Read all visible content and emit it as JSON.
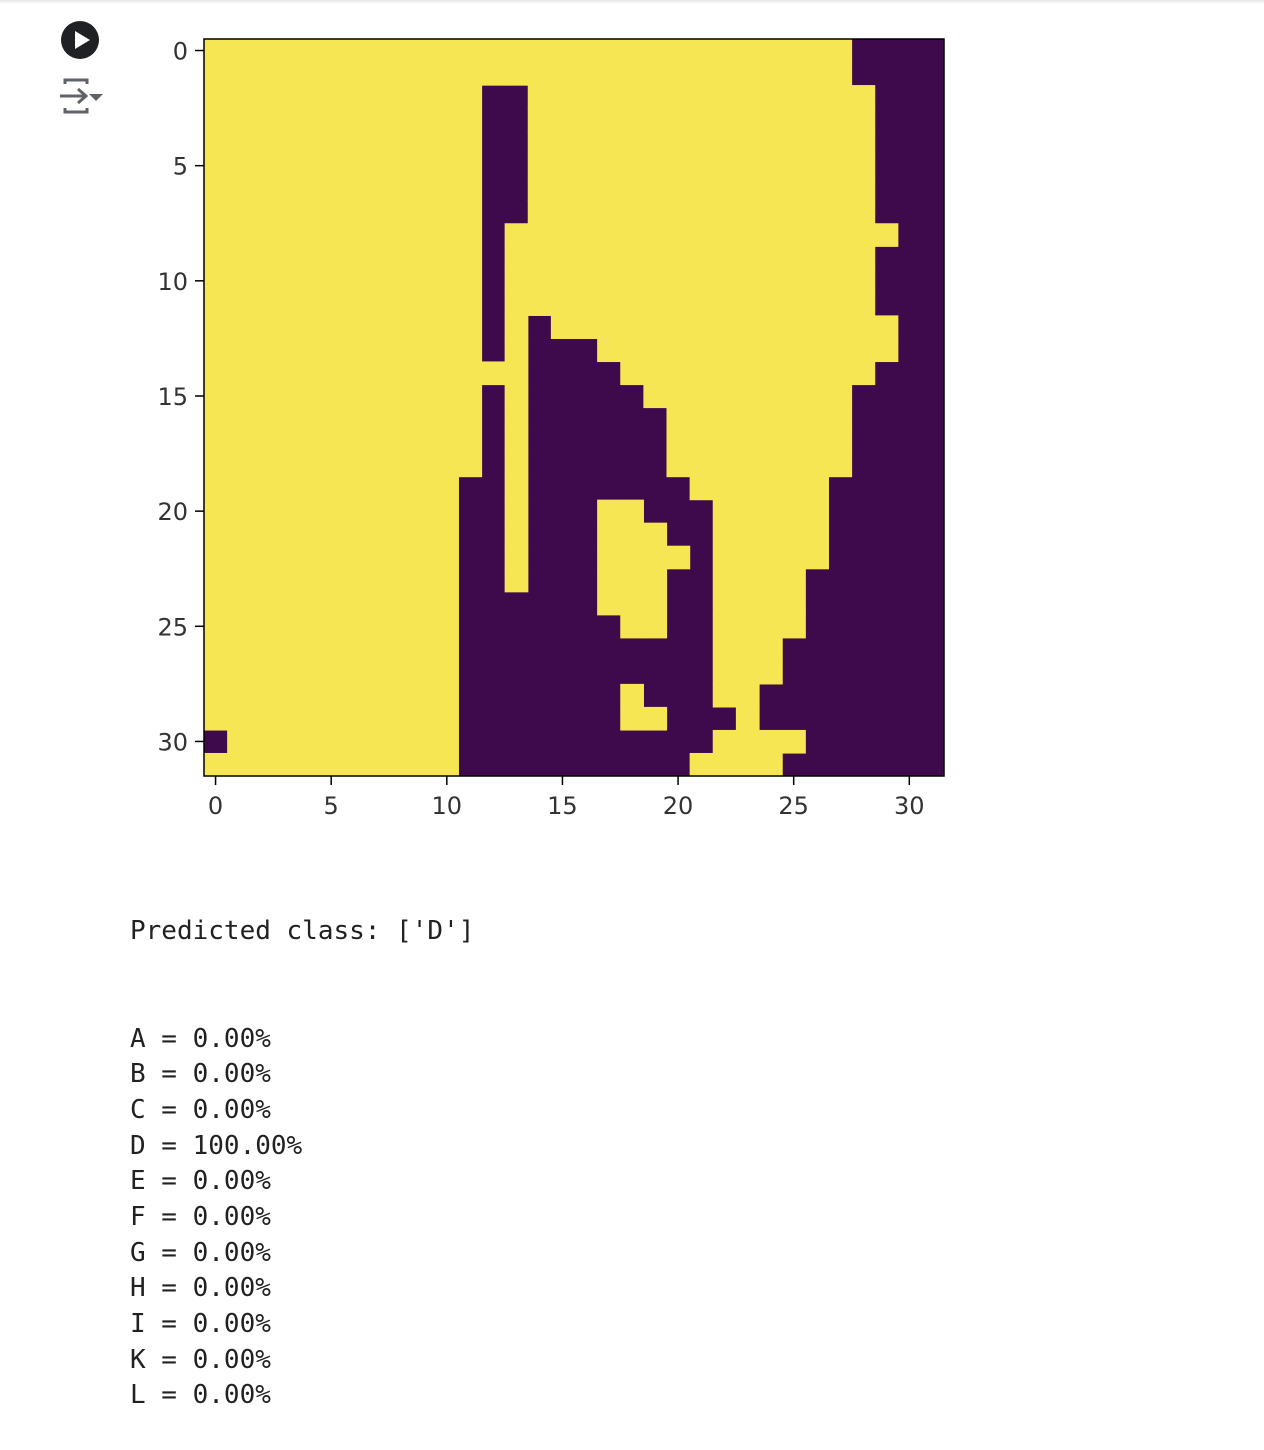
{
  "cell": {
    "run_icon": "play-circle-icon",
    "output_toggle_icon": "output-toggle-icon"
  },
  "chart_data": {
    "type": "heatmap",
    "colormap": "viridis",
    "colors": {
      "high": "#f7e654",
      "low": "#3f0a4b",
      "axis": "#000000"
    },
    "xlim": [
      -0.5,
      31.5
    ],
    "ylim": [
      31.5,
      -0.5
    ],
    "xticks": [
      0,
      5,
      10,
      15,
      20,
      25,
      30
    ],
    "yticks": [
      0,
      5,
      10,
      15,
      20,
      25,
      30
    ],
    "xtick_labels": [
      "0",
      "5",
      "10",
      "15",
      "20",
      "25",
      "30"
    ],
    "ytick_labels": [
      "0",
      "5",
      "10",
      "15",
      "20",
      "25",
      "30"
    ],
    "rows": [
      "11111111111111111111111111110000",
      "11111111111111111111111111110000",
      "11111111111100111111111111111000",
      "11111111111100111111111111111000",
      "11111111111100111111111111111000",
      "11111111111100111111111111111000",
      "11111111111100111111111111111000",
      "11111111111100111111111111111000",
      "11111111111101111111111111111100",
      "11111111111101111111111111111000",
      "11111111111101111111111111111000",
      "11111111111101111111111111111000",
      "11111111111101011111111111111100",
      "11111111111101000111111111111100",
      "11111111111111000011111111111000",
      "11111111111101000001111111110000",
      "11111111111101000000111111110000",
      "11111111111101000000111111110000",
      "11111111111101000000111111110000",
      "11111111111001000000011111100000",
      "11111111111001000110001111100000",
      "11111111111001000111001111100000",
      "11111111111001000111101111100000",
      "11111111111001000111001111000000",
      "11111111111000000111001111000000",
      "11111111111000000011001111000000",
      "11111111111000000000001110000000",
      "11111111111000000000001110000000",
      "11111111111000000010001100000000",
      "11111111111000000011000100000000",
      "01111111111000000000001111000000",
      "11111111111000000000011110000000"
    ]
  },
  "output": {
    "prediction": "Predicted class: ['D']",
    "probabilities": [
      "A = 0.00%",
      "B = 0.00%",
      "C = 0.00%",
      "D = 100.00%",
      "E = 0.00%",
      "F = 0.00%",
      "G = 0.00%",
      "H = 0.00%",
      "I = 0.00%",
      "K = 0.00%",
      "L = 0.00%"
    ]
  }
}
